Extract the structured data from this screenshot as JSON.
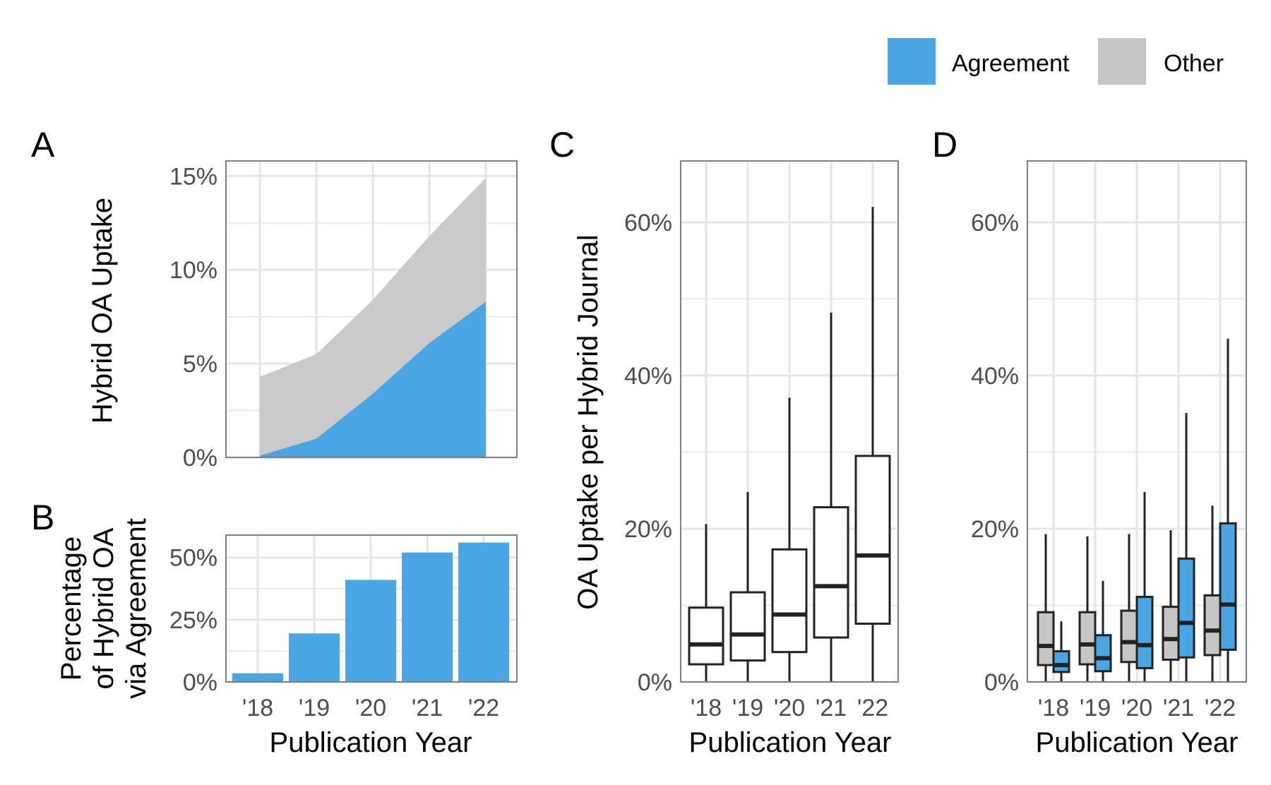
{
  "legend": {
    "entries": [
      {
        "label": "Agreement",
        "color": "#4AA5E2"
      },
      {
        "label": "Other",
        "color": "#C6C6C6"
      }
    ],
    "placement": "top-right"
  },
  "colors": {
    "agreement": "#4AA5E2",
    "other": "#C6C6C6",
    "gridline": "#E5E5E5",
    "frame": "#7F7F7F",
    "box_line": "#222222"
  },
  "chart_data": [
    {
      "panel": "A",
      "type": "area",
      "stacked": true,
      "categories": [
        "'18",
        "'19",
        "'20",
        "'21",
        "'22"
      ],
      "series": [
        {
          "name": "Agreement",
          "values": [
            0.1,
            1.0,
            3.4,
            6.1,
            8.3
          ]
        },
        {
          "name": "Other",
          "values": [
            4.2,
            4.5,
            5.0,
            5.7,
            6.6
          ]
        }
      ],
      "ylabel": "Hybrid OA Uptake",
      "xlabel": "",
      "ylim": [
        0,
        15.8
      ],
      "yticks": [
        0,
        5,
        10,
        15
      ],
      "yticklabels": [
        "0%",
        "5%",
        "10%",
        "15%"
      ],
      "grid": true
    },
    {
      "panel": "B",
      "type": "bar",
      "categories": [
        "'18",
        "'19",
        "'20",
        "'21",
        "'22"
      ],
      "values": [
        3.5,
        19.5,
        41,
        52,
        56
      ],
      "color": "#4AA5E2",
      "ylabel_lines": [
        "Percentage",
        "of Hybrid OA",
        "via Agreement"
      ],
      "xlabel": "Publication Year",
      "ylim": [
        0,
        59
      ],
      "yticks": [
        0,
        25,
        50
      ],
      "yticklabels": [
        "0%",
        "25%",
        "50%"
      ],
      "grid": true
    },
    {
      "panel": "C",
      "type": "box",
      "categories": [
        "'18",
        "'19",
        "'20",
        "'21",
        "'22"
      ],
      "boxes": [
        {
          "min": 0,
          "q1": 2.3,
          "median": 4.9,
          "q3": 9.7,
          "max": 20.6
        },
        {
          "min": 0,
          "q1": 2.8,
          "median": 6.2,
          "q3": 11.7,
          "max": 24.8
        },
        {
          "min": 0,
          "q1": 3.9,
          "median": 8.8,
          "q3": 17.3,
          "max": 37.1
        },
        {
          "min": 0,
          "q1": 5.8,
          "median": 12.5,
          "q3": 22.8,
          "max": 48.2
        },
        {
          "min": 0,
          "q1": 7.6,
          "median": 16.5,
          "q3": 29.5,
          "max": 62.0
        }
      ],
      "fill": "#FFFFFF",
      "ylabel": "OA Uptake per Hybrid Journal",
      "xlabel": "Publication Year",
      "ylim": [
        0,
        68
      ],
      "yticks": [
        0,
        20,
        40,
        60
      ],
      "yticklabels": [
        "0%",
        "20%",
        "40%",
        "60%"
      ],
      "grid": true
    },
    {
      "panel": "D",
      "type": "box",
      "categories": [
        "'18",
        "'19",
        "'20",
        "'21",
        "'22"
      ],
      "series": [
        {
          "name": "Other",
          "color": "#C6C6C6",
          "boxes": [
            {
              "min": 0,
              "q1": 2.2,
              "median": 4.7,
              "q3": 9.1,
              "max": 19.3
            },
            {
              "min": 0,
              "q1": 2.3,
              "median": 4.9,
              "q3": 9.1,
              "max": 19.0
            },
            {
              "min": 0,
              "q1": 2.6,
              "median": 5.2,
              "q3": 9.3,
              "max": 19.3
            },
            {
              "min": 0,
              "q1": 2.9,
              "median": 5.6,
              "q3": 9.8,
              "max": 19.8
            },
            {
              "min": 0,
              "q1": 3.5,
              "median": 6.7,
              "q3": 11.3,
              "max": 23.0
            }
          ]
        },
        {
          "name": "Agreement",
          "color": "#4AA5E2",
          "boxes": [
            {
              "min": 0,
              "q1": 1.3,
              "median": 2.2,
              "q3": 4.0,
              "max": 7.9
            },
            {
              "min": 0,
              "q1": 1.4,
              "median": 3.1,
              "q3": 6.1,
              "max": 13.2
            },
            {
              "min": 0,
              "q1": 1.8,
              "median": 4.8,
              "q3": 11.1,
              "max": 24.8
            },
            {
              "min": 0,
              "q1": 3.2,
              "median": 7.7,
              "q3": 16.1,
              "max": 35.1
            },
            {
              "min": 0,
              "q1": 4.2,
              "median": 10.1,
              "q3": 20.7,
              "max": 44.8
            }
          ]
        }
      ],
      "ylabel": "",
      "xlabel": "Publication Year",
      "ylim": [
        0,
        68
      ],
      "yticks": [
        0,
        20,
        40,
        60
      ],
      "yticklabels": [
        "0%",
        "20%",
        "40%",
        "60%"
      ],
      "grid": true
    }
  ]
}
